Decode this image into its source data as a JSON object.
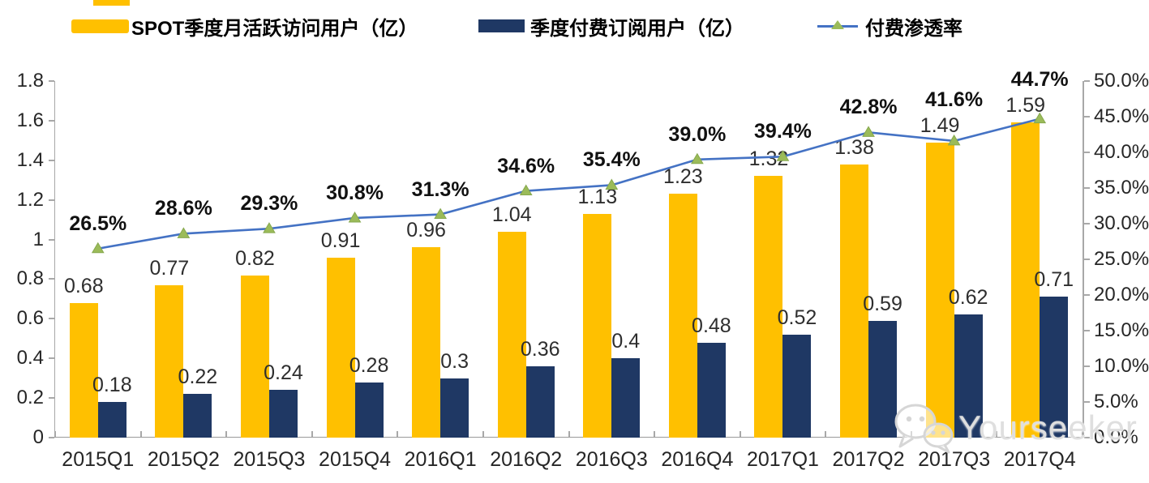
{
  "legend": {
    "items": [
      {
        "label": "SPOT季度月活跃访问用户（亿）",
        "color": "#FFC000",
        "type": "bar"
      },
      {
        "label": "季度付费订阅用户（亿）",
        "color": "#1F3864",
        "type": "bar"
      },
      {
        "label": "付费渗透率",
        "color": "#4472C4",
        "marker_color": "#9BBB59",
        "type": "line"
      }
    ]
  },
  "colors": {
    "mau_bar": "#FFC000",
    "subs_bar": "#1F3864",
    "line": "#4472C4",
    "line_marker": "#9BBB59",
    "axis": "#a8a8a8",
    "tick_text": "#262626",
    "label_text": "#2e2e2e",
    "watermark": "#dfdfdf"
  },
  "chart_data": {
    "type": "bar+line combo",
    "grid": "off",
    "legend_position": "top",
    "categories": [
      "2015Q1",
      "2015Q2",
      "2015Q3",
      "2015Q4",
      "2016Q1",
      "2016Q2",
      "2016Q3",
      "2016Q4",
      "2017Q1",
      "2017Q2",
      "2017Q3",
      "2017Q4"
    ],
    "series": [
      {
        "name": "SPOT季度月活跃访问用户（亿）",
        "type": "bar",
        "axis": "left",
        "color": "#FFC000",
        "values": [
          0.68,
          0.77,
          0.82,
          0.91,
          0.96,
          1.04,
          1.13,
          1.23,
          1.32,
          1.38,
          1.49,
          1.59
        ],
        "labels": [
          "0.68",
          "0.77",
          "0.82",
          "0.91",
          "0.96",
          "1.04",
          "1.13",
          "1.23",
          "1.32",
          "1.38",
          "1.49",
          "1.59"
        ]
      },
      {
        "name": "季度付费订阅用户（亿）",
        "type": "bar",
        "axis": "left",
        "color": "#1F3864",
        "values": [
          0.18,
          0.22,
          0.24,
          0.28,
          0.3,
          0.36,
          0.4,
          0.48,
          0.52,
          0.59,
          0.62,
          0.71
        ],
        "labels": [
          "0.18",
          "0.22",
          "0.24",
          "0.28",
          "0.3",
          "0.36",
          "0.4",
          "0.48",
          "0.52",
          "0.59",
          "0.62",
          "0.71"
        ]
      },
      {
        "name": "付费渗透率",
        "type": "line",
        "axis": "right",
        "color": "#4472C4",
        "marker": "triangle",
        "marker_color": "#9BBB59",
        "values": [
          26.5,
          28.6,
          29.3,
          30.8,
          31.3,
          34.6,
          35.4,
          39.0,
          39.4,
          42.8,
          41.6,
          44.7
        ],
        "labels": [
          "26.5%",
          "28.6%",
          "29.3%",
          "30.8%",
          "31.3%",
          "34.6%",
          "35.4%",
          "39.0%",
          "39.4%",
          "42.8%",
          "41.6%",
          "44.7%"
        ]
      }
    ],
    "left_axis": {
      "min": 0,
      "max": 1.8,
      "step": 0.2,
      "ticks": [
        "0",
        "0.2",
        "0.4",
        "0.6",
        "0.8",
        "1",
        "1.2",
        "1.4",
        "1.6",
        "1.8"
      ]
    },
    "right_axis": {
      "min": 0,
      "max": 50,
      "step": 5,
      "ticks": [
        "0.0%",
        "5.0%",
        "10.0%",
        "15.0%",
        "20.0%",
        "25.0%",
        "30.0%",
        "35.0%",
        "40.0%",
        "45.0%",
        "50.0%"
      ]
    }
  },
  "watermark": {
    "text": "Yourseeker",
    "icon": "wechat-icon"
  }
}
